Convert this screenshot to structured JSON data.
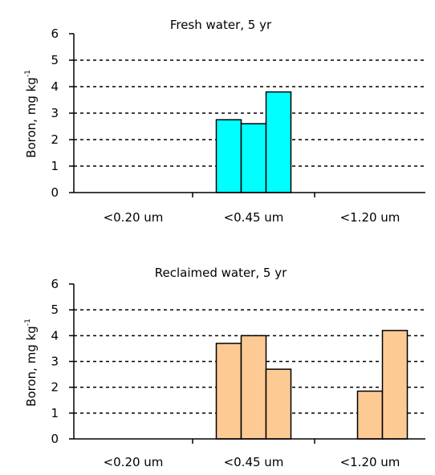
{
  "chart_data": [
    {
      "type": "bar",
      "title": "Fresh water, 5 yr",
      "ylabel": "Boron, mg kg",
      "ylabel_sup": "-1",
      "xlabel": "",
      "categories": [
        "<0.20 um",
        "<0.45 um",
        "<1.20 um"
      ],
      "ylim": [
        0,
        6
      ],
      "yticks": [
        0,
        1,
        2,
        3,
        4,
        5,
        6
      ],
      "grid": true,
      "bar_color": "#00ffff",
      "series": [
        {
          "values": [
            null,
            2.75,
            null
          ]
        },
        {
          "values": [
            null,
            2.6,
            null
          ]
        },
        {
          "values": [
            null,
            3.8,
            null
          ]
        }
      ]
    },
    {
      "type": "bar",
      "title": "Reclaimed water, 5 yr",
      "ylabel": "Boron, mg kg",
      "ylabel_sup": "-1",
      "xlabel": "",
      "categories": [
        "<0.20 um",
        "<0.45 um",
        "<1.20 um"
      ],
      "ylim": [
        0,
        6
      ],
      "yticks": [
        0,
        1,
        2,
        3,
        4,
        5,
        6
      ],
      "grid": true,
      "bar_color": "#fdca94",
      "series": [
        {
          "values": [
            null,
            3.7,
            null
          ]
        },
        {
          "values": [
            null,
            4.0,
            1.85
          ]
        },
        {
          "values": [
            null,
            2.7,
            4.2
          ]
        }
      ]
    }
  ]
}
